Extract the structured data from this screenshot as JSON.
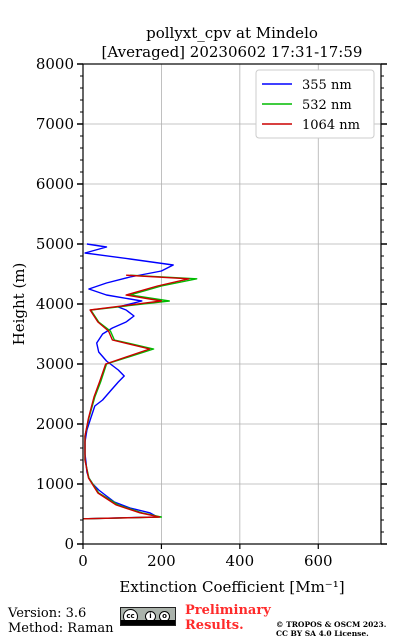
{
  "chart_data": {
    "type": "line",
    "title": "pollyxt_cpv at Mindelo",
    "subtitle": "[Averaged] 20230602 17:31-17:59",
    "xlabel": "Extinction Coefficient [Mm⁻¹]",
    "ylabel": "Height (m)",
    "xlim": [
      0,
      760
    ],
    "ylim": [
      0,
      8000
    ],
    "xticks": [
      0,
      200,
      400,
      600
    ],
    "yticks": [
      0,
      1000,
      2000,
      3000,
      4000,
      5000,
      6000,
      7000,
      8000
    ],
    "grid": true,
    "legend_position": "top-right",
    "series": [
      {
        "name": "355 nm",
        "color": "#0000ff",
        "points": [
          [
            0,
            420
          ],
          [
            190,
            450
          ],
          [
            170,
            520
          ],
          [
            120,
            600
          ],
          [
            80,
            700
          ],
          [
            60,
            800
          ],
          [
            40,
            900
          ],
          [
            25,
            1000
          ],
          [
            15,
            1100
          ],
          [
            10,
            1200
          ],
          [
            8,
            1350
          ],
          [
            5,
            1500
          ],
          [
            5,
            1700
          ],
          [
            10,
            1900
          ],
          [
            20,
            2100
          ],
          [
            30,
            2300
          ],
          [
            50,
            2400
          ],
          [
            70,
            2550
          ],
          [
            90,
            2700
          ],
          [
            105,
            2800
          ],
          [
            90,
            2900
          ],
          [
            60,
            3050
          ],
          [
            40,
            3200
          ],
          [
            35,
            3350
          ],
          [
            50,
            3500
          ],
          [
            75,
            3600
          ],
          [
            110,
            3700
          ],
          [
            130,
            3800
          ],
          [
            110,
            3900
          ],
          [
            90,
            3950
          ],
          [
            150,
            4050
          ],
          [
            60,
            4150
          ],
          [
            15,
            4250
          ],
          [
            60,
            4350
          ],
          [
            120,
            4450
          ],
          [
            200,
            4550
          ],
          [
            230,
            4650
          ],
          [
            120,
            4750
          ],
          [
            5,
            4850
          ],
          [
            60,
            4950
          ],
          [
            10,
            5000
          ]
        ]
      },
      {
        "name": "532 nm",
        "color": "#00bb00",
        "points": [
          [
            0,
            420
          ],
          [
            200,
            450
          ],
          [
            150,
            520
          ],
          [
            90,
            650
          ],
          [
            40,
            850
          ],
          [
            15,
            1100
          ],
          [
            5,
            1400
          ],
          [
            5,
            1800
          ],
          [
            15,
            2100
          ],
          [
            30,
            2450
          ],
          [
            45,
            2700
          ],
          [
            60,
            3000
          ],
          [
            180,
            3250
          ],
          [
            80,
            3400
          ],
          [
            70,
            3550
          ],
          [
            40,
            3700
          ],
          [
            20,
            3900
          ],
          [
            220,
            4050
          ],
          [
            120,
            4150
          ],
          [
            200,
            4300
          ],
          [
            290,
            4420
          ],
          [
            120,
            4480
          ]
        ]
      },
      {
        "name": "1064 nm",
        "color": "#cc0000",
        "points": [
          [
            0,
            420
          ],
          [
            195,
            450
          ],
          [
            145,
            520
          ],
          [
            85,
            650
          ],
          [
            38,
            850
          ],
          [
            14,
            1100
          ],
          [
            5,
            1400
          ],
          [
            5,
            1800
          ],
          [
            14,
            2100
          ],
          [
            28,
            2450
          ],
          [
            42,
            2700
          ],
          [
            58,
            3000
          ],
          [
            170,
            3250
          ],
          [
            75,
            3400
          ],
          [
            65,
            3550
          ],
          [
            38,
            3700
          ],
          [
            18,
            3900
          ],
          [
            200,
            4050
          ],
          [
            110,
            4150
          ],
          [
            190,
            4300
          ],
          [
            270,
            4420
          ],
          [
            110,
            4480
          ]
        ]
      }
    ]
  },
  "footer": {
    "version": "Version: 3.6",
    "method": "Method: Raman",
    "license_badge": "cc-by-sa-badge",
    "prelim_line1": "Preliminary",
    "prelim_line2": "Results.",
    "copyright_line1": "© TROPOS & OSCM 2023.",
    "copyright_line2": "CC BY SA 4.0 License."
  }
}
